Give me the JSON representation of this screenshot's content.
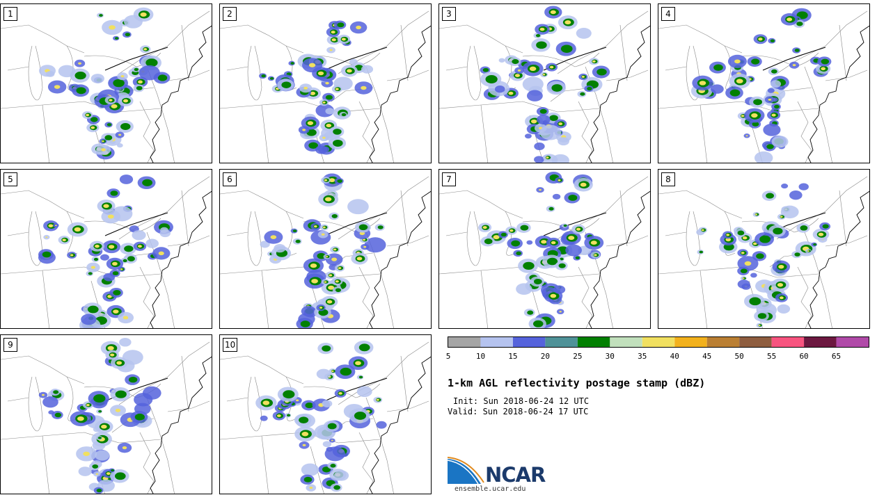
{
  "panels": [
    {
      "label": "1"
    },
    {
      "label": "2"
    },
    {
      "label": "3"
    },
    {
      "label": "4"
    },
    {
      "label": "5"
    },
    {
      "label": "6"
    },
    {
      "label": "7"
    },
    {
      "label": "8"
    },
    {
      "label": "9"
    },
    {
      "label": "10"
    }
  ],
  "colorbar": {
    "ticks": [
      "5",
      "10",
      "15",
      "20",
      "25",
      "30",
      "35",
      "40",
      "45",
      "50",
      "55",
      "60",
      "65"
    ],
    "colors": [
      "#a5a5a5",
      "#b5c3ef",
      "#5563dc",
      "#4f9298",
      "#028002",
      "#c1e0bc",
      "#f1e060",
      "#f2b11d",
      "#ba7f33",
      "#8e5d3f",
      "#f7547f",
      "#6c1840",
      "#b04aa8"
    ]
  },
  "title": "1-km AGL reflectivity postage stamp (dBZ)",
  "init": "Init: Sun 2018-06-24 12 UTC",
  "valid": "Valid: Sun 2018-06-24 17 UTC",
  "logo": {
    "text": "NCAR",
    "website": "ensemble.ucar.edu"
  }
}
